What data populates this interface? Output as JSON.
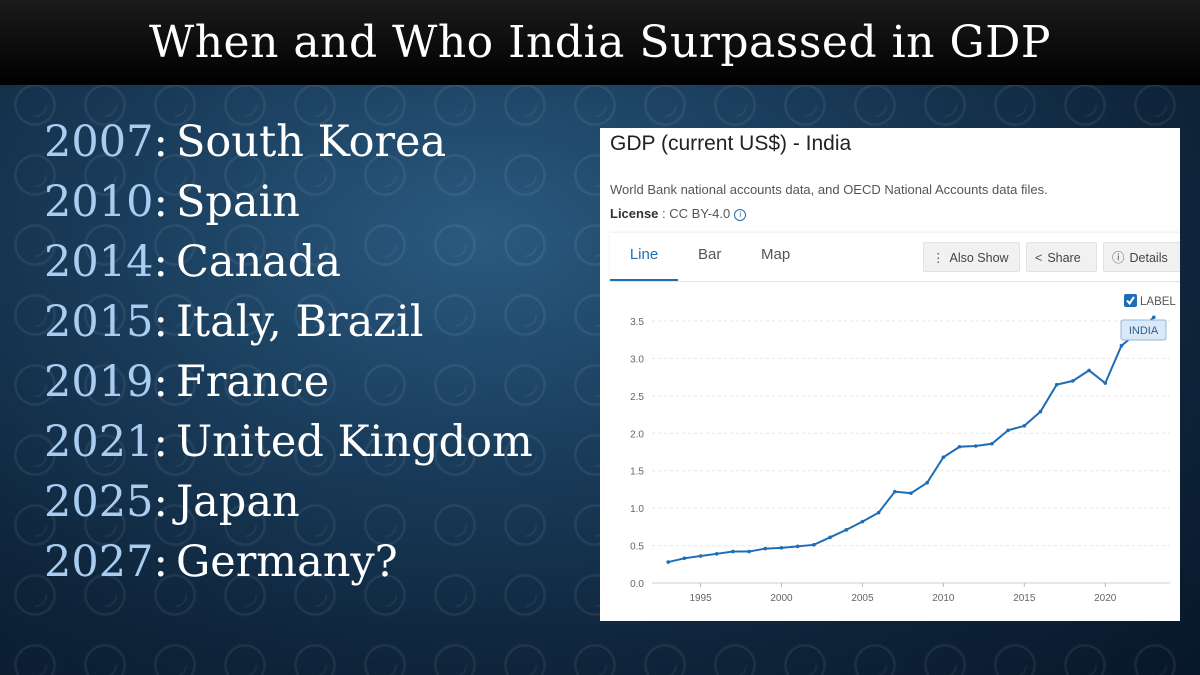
{
  "slide": {
    "title": "When and Who India Surpassed in GDP",
    "items": [
      {
        "year": "2007",
        "name": "South Korea"
      },
      {
        "year": "2010",
        "name": "Spain"
      },
      {
        "year": "2014",
        "name": "Canada"
      },
      {
        "year": "2015",
        "name": "Italy, Brazil"
      },
      {
        "year": "2019",
        "name": "France"
      },
      {
        "year": "2021",
        "name": "United Kingdom"
      },
      {
        "year": "2025",
        "name": "Japan"
      },
      {
        "year": "2027",
        "name": "Germany?"
      }
    ]
  },
  "panel": {
    "title": "GDP (current US$) - India",
    "source": "World Bank national accounts data, and OECD National Accounts data files.",
    "license_label": "License",
    "license_value": "CC BY-4.0",
    "tabs": [
      "Line",
      "Bar",
      "Map"
    ],
    "buttons": {
      "also_show": "Also Show",
      "share": "Share",
      "details": "Details"
    },
    "label_checkbox": "LABEL",
    "series_tag": "INDIA"
  },
  "colors": {
    "line": "#1f6db5",
    "year_text": "#a9ccf0",
    "title_bar": "#000000"
  },
  "chart_data": {
    "type": "line",
    "title": "GDP (current US$) - India",
    "x": [
      1993,
      1994,
      1995,
      1996,
      1997,
      1998,
      1999,
      2000,
      2001,
      2002,
      2003,
      2004,
      2005,
      2006,
      2007,
      2008,
      2009,
      2010,
      2011,
      2012,
      2013,
      2014,
      2015,
      2016,
      2017,
      2018,
      2019,
      2020,
      2021,
      2022,
      2023
    ],
    "series": [
      {
        "name": "INDIA",
        "values": [
          0.28,
          0.33,
          0.36,
          0.39,
          0.42,
          0.42,
          0.46,
          0.47,
          0.49,
          0.51,
          0.61,
          0.71,
          0.82,
          0.94,
          1.22,
          1.2,
          1.34,
          1.68,
          1.82,
          1.83,
          1.86,
          2.04,
          2.1,
          2.29,
          2.65,
          2.7,
          2.84,
          2.67,
          3.17,
          3.35,
          3.55
        ]
      }
    ],
    "xticks": [
      1995,
      2000,
      2005,
      2010,
      2015,
      2020
    ],
    "yticks": [
      0.0,
      0.5,
      1.0,
      1.5,
      2.0,
      2.5,
      3.0,
      3.5
    ],
    "xlim": [
      1992,
      2024
    ],
    "ylim": [
      0,
      3.5
    ],
    "grid": true
  }
}
